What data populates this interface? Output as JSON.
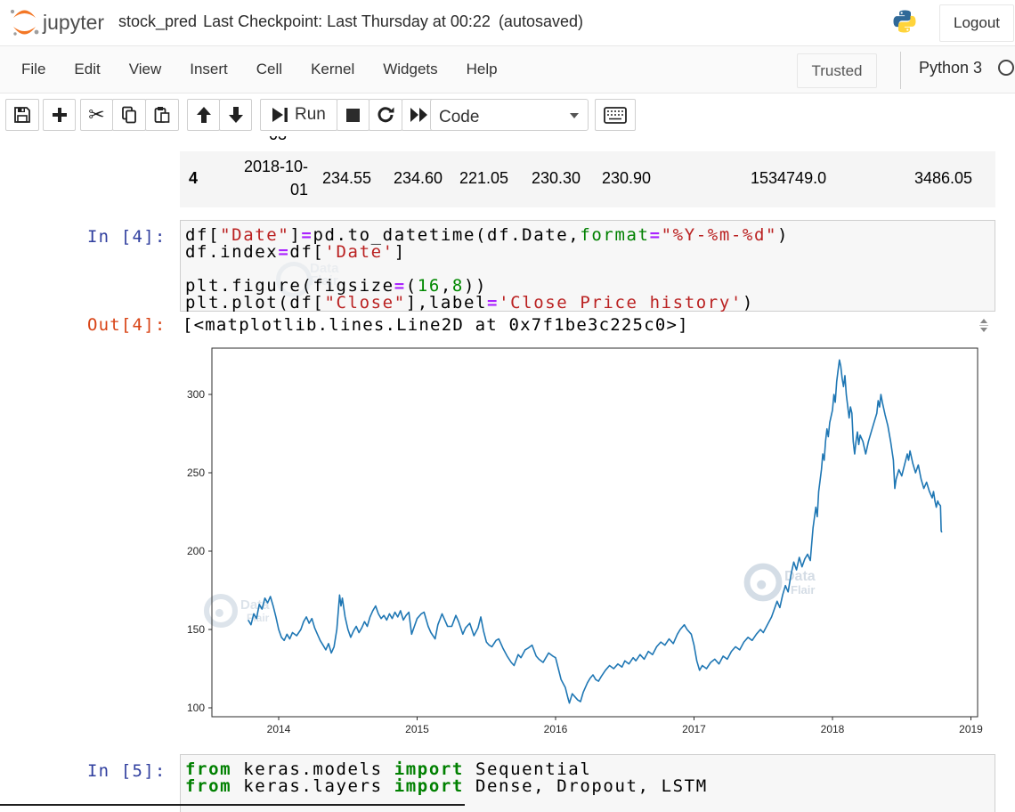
{
  "header": {
    "logo_text": "jupyter",
    "title": "stock_pred",
    "checkpoint_status": "Last Checkpoint: Last Thursday at 00:22",
    "autosave_status": "(autosaved)",
    "logout_label": "Logout"
  },
  "menubar": {
    "items": [
      "File",
      "Edit",
      "View",
      "Insert",
      "Cell",
      "Kernel",
      "Widgets",
      "Help"
    ],
    "trusted_badge": "Trusted",
    "kernel_name": "Python 3"
  },
  "toolbar": {
    "run_label": "Run",
    "cell_type_selected": "Code"
  },
  "dataframe_row": {
    "clipped_text_above": "03",
    "index": "4",
    "date_lines": [
      "2018-10-",
      "01"
    ],
    "values": [
      "234.55",
      "234.60",
      "221.05",
      "230.30",
      "230.90",
      "1534749.0",
      "3486.05"
    ]
  },
  "cell_in4": {
    "prompt": "In [4]:",
    "code_lines": [
      [
        [
          "p",
          "df["
        ],
        [
          "s",
          "\"Date\""
        ],
        [
          "p",
          "]"
        ],
        [
          "o",
          "="
        ],
        [
          "p",
          "pd.to_datetime(df.Date,"
        ],
        [
          "b",
          "format"
        ],
        [
          "o",
          "="
        ],
        [
          "s",
          "\"%Y-%m-%d\""
        ],
        [
          "p",
          ")"
        ]
      ],
      [
        [
          "p",
          "df.index"
        ],
        [
          "o",
          "="
        ],
        [
          "p",
          "df["
        ],
        [
          "s",
          "'Date'"
        ],
        [
          "p",
          "]"
        ]
      ],
      [],
      [
        [
          "p",
          "plt.figure(figsize"
        ],
        [
          "o",
          "="
        ],
        [
          "p",
          "("
        ],
        [
          "n",
          "16"
        ],
        [
          "p",
          ","
        ],
        [
          "n",
          "8"
        ],
        [
          "p",
          "))"
        ]
      ],
      [
        [
          "p",
          "plt.plot(df["
        ],
        [
          "s",
          "\"Close\""
        ],
        [
          "p",
          "],label"
        ],
        [
          "o",
          "="
        ],
        [
          "s",
          "'Close Price history'"
        ],
        [
          "p",
          ")"
        ]
      ]
    ]
  },
  "out4": {
    "prompt": "Out[4]:",
    "text": "[<matplotlib.lines.Line2D at 0x7f1be3c225c0>]"
  },
  "cell_in5": {
    "prompt": "In [5]:",
    "code_lines": [
      [
        [
          "k",
          "from"
        ],
        [
          "p",
          " keras.models "
        ],
        [
          "k",
          "import"
        ],
        [
          "p",
          " Sequential"
        ]
      ],
      [
        [
          "k",
          "from"
        ],
        [
          "p",
          " keras.layers "
        ],
        [
          "k",
          "import"
        ],
        [
          "p",
          " Dense, Dropout, LSTM"
        ]
      ]
    ]
  },
  "watermark": {
    "line1": "Data",
    "line2": "Flair"
  },
  "chart_data": {
    "type": "line",
    "title": "",
    "xlabel": "",
    "ylabel": "",
    "x_ticks": [
      2014,
      2015,
      2016,
      2017,
      2018,
      2019
    ],
    "y_ticks": [
      100,
      150,
      200,
      250,
      300
    ],
    "xlim": [
      2013.52,
      2019.03
    ],
    "ylim": [
      94.3,
      329.6
    ],
    "grid": false,
    "legend": "none",
    "series": [
      {
        "name": "Close Price history",
        "color": "#1f77b4",
        "points": [
          [
            2013.78,
            156
          ],
          [
            2013.8,
            153
          ],
          [
            2013.82,
            160
          ],
          [
            2013.84,
            157
          ],
          [
            2013.86,
            166
          ],
          [
            2013.88,
            163
          ],
          [
            2013.9,
            170
          ],
          [
            2013.92,
            167
          ],
          [
            2013.94,
            171
          ],
          [
            2013.96,
            165
          ],
          [
            2013.98,
            158
          ],
          [
            2014.0,
            150
          ],
          [
            2014.02,
            145
          ],
          [
            2014.04,
            143
          ],
          [
            2014.06,
            147
          ],
          [
            2014.08,
            144
          ],
          [
            2014.1,
            148
          ],
          [
            2014.13,
            146
          ],
          [
            2014.16,
            150
          ],
          [
            2014.18,
            155
          ],
          [
            2014.2,
            158
          ],
          [
            2014.22,
            154
          ],
          [
            2014.24,
            157
          ],
          [
            2014.26,
            151
          ],
          [
            2014.28,
            147
          ],
          [
            2014.3,
            143
          ],
          [
            2014.32,
            140
          ],
          [
            2014.34,
            137
          ],
          [
            2014.36,
            141
          ],
          [
            2014.38,
            135
          ],
          [
            2014.4,
            139
          ],
          [
            2014.42,
            150
          ],
          [
            2014.44,
            172
          ],
          [
            2014.45,
            165
          ],
          [
            2014.46,
            170
          ],
          [
            2014.48,
            158
          ],
          [
            2014.5,
            150
          ],
          [
            2014.52,
            145
          ],
          [
            2014.54,
            149
          ],
          [
            2014.56,
            152
          ],
          [
            2014.58,
            148
          ],
          [
            2014.6,
            151
          ],
          [
            2014.62,
            155
          ],
          [
            2014.64,
            152
          ],
          [
            2014.66,
            158
          ],
          [
            2014.68,
            162
          ],
          [
            2014.7,
            165
          ],
          [
            2014.72,
            160
          ],
          [
            2014.74,
            157
          ],
          [
            2014.76,
            159
          ],
          [
            2014.78,
            156
          ],
          [
            2014.8,
            160
          ],
          [
            2014.82,
            157
          ],
          [
            2014.84,
            161
          ],
          [
            2014.86,
            158
          ],
          [
            2014.88,
            162
          ],
          [
            2014.9,
            156
          ],
          [
            2014.92,
            159
          ],
          [
            2014.94,
            161
          ],
          [
            2014.96,
            147
          ],
          [
            2014.98,
            152
          ],
          [
            2015.0,
            157
          ],
          [
            2015.03,
            160
          ],
          [
            2015.05,
            161
          ],
          [
            2015.08,
            152
          ],
          [
            2015.1,
            148
          ],
          [
            2015.13,
            144
          ],
          [
            2015.15,
            153
          ],
          [
            2015.18,
            160
          ],
          [
            2015.2,
            156
          ],
          [
            2015.22,
            152
          ],
          [
            2015.25,
            152
          ],
          [
            2015.28,
            159
          ],
          [
            2015.3,
            155
          ],
          [
            2015.33,
            147
          ],
          [
            2015.35,
            151
          ],
          [
            2015.38,
            154
          ],
          [
            2015.41,
            146
          ],
          [
            2015.44,
            151
          ],
          [
            2015.46,
            158
          ],
          [
            2015.48,
            149
          ],
          [
            2015.5,
            142
          ],
          [
            2015.52,
            140
          ],
          [
            2015.54,
            139
          ],
          [
            2015.57,
            143
          ],
          [
            2015.59,
            144
          ],
          [
            2015.62,
            138
          ],
          [
            2015.65,
            133
          ],
          [
            2015.68,
            129
          ],
          [
            2015.7,
            127
          ],
          [
            2015.73,
            134
          ],
          [
            2015.75,
            132
          ],
          [
            2015.78,
            137
          ],
          [
            2015.8,
            138
          ],
          [
            2015.83,
            140
          ],
          [
            2015.86,
            133
          ],
          [
            2015.88,
            131
          ],
          [
            2015.91,
            129
          ],
          [
            2015.93,
            132
          ],
          [
            2015.95,
            135
          ],
          [
            2015.98,
            133
          ],
          [
            2016.0,
            132
          ],
          [
            2016.02,
            125
          ],
          [
            2016.04,
            118
          ],
          [
            2016.07,
            113
          ],
          [
            2016.09,
            106
          ],
          [
            2016.1,
            103
          ],
          [
            2016.12,
            109
          ],
          [
            2016.14,
            107
          ],
          [
            2016.16,
            105
          ],
          [
            2016.18,
            104
          ],
          [
            2016.2,
            110
          ],
          [
            2016.23,
            116
          ],
          [
            2016.25,
            119
          ],
          [
            2016.27,
            121
          ],
          [
            2016.29,
            118
          ],
          [
            2016.31,
            117
          ],
          [
            2016.33,
            120
          ],
          [
            2016.36,
            124
          ],
          [
            2016.39,
            127
          ],
          [
            2016.42,
            125
          ],
          [
            2016.45,
            128
          ],
          [
            2016.48,
            126
          ],
          [
            2016.5,
            130
          ],
          [
            2016.53,
            128
          ],
          [
            2016.56,
            132
          ],
          [
            2016.58,
            130
          ],
          [
            2016.61,
            134
          ],
          [
            2016.64,
            131
          ],
          [
            2016.67,
            136
          ],
          [
            2016.7,
            134
          ],
          [
            2016.73,
            139
          ],
          [
            2016.76,
            142
          ],
          [
            2016.79,
            140
          ],
          [
            2016.82,
            144
          ],
          [
            2016.85,
            141
          ],
          [
            2016.88,
            147
          ],
          [
            2016.9,
            150
          ],
          [
            2016.93,
            153
          ],
          [
            2016.95,
            150
          ],
          [
            2016.98,
            147
          ],
          [
            2017.0,
            140
          ],
          [
            2017.02,
            130
          ],
          [
            2017.04,
            124
          ],
          [
            2017.06,
            127
          ],
          [
            2017.09,
            125
          ],
          [
            2017.12,
            129
          ],
          [
            2017.15,
            131
          ],
          [
            2017.18,
            128
          ],
          [
            2017.21,
            133
          ],
          [
            2017.24,
            131
          ],
          [
            2017.27,
            136
          ],
          [
            2017.3,
            139
          ],
          [
            2017.33,
            137
          ],
          [
            2017.36,
            142
          ],
          [
            2017.39,
            145
          ],
          [
            2017.42,
            143
          ],
          [
            2017.45,
            147
          ],
          [
            2017.48,
            150
          ],
          [
            2017.5,
            148
          ],
          [
            2017.53,
            153
          ],
          [
            2017.56,
            158
          ],
          [
            2017.58,
            163
          ],
          [
            2017.6,
            168
          ],
          [
            2017.62,
            164
          ],
          [
            2017.64,
            172
          ],
          [
            2017.66,
            178
          ],
          [
            2017.68,
            174
          ],
          [
            2017.7,
            185
          ],
          [
            2017.72,
            193
          ],
          [
            2017.74,
            188
          ],
          [
            2017.76,
            196
          ],
          [
            2017.78,
            190
          ],
          [
            2017.8,
            195
          ],
          [
            2017.82,
            198
          ],
          [
            2017.84,
            194
          ],
          [
            2017.85,
            205
          ],
          [
            2017.86,
            215
          ],
          [
            2017.88,
            228
          ],
          [
            2017.89,
            222
          ],
          [
            2017.9,
            238
          ],
          [
            2017.92,
            252
          ],
          [
            2017.93,
            262
          ],
          [
            2017.94,
            258
          ],
          [
            2017.95,
            270
          ],
          [
            2017.96,
            278
          ],
          [
            2017.97,
            273
          ],
          [
            2017.98,
            282
          ],
          [
            2018.0,
            290
          ],
          [
            2018.01,
            300
          ],
          [
            2018.02,
            295
          ],
          [
            2018.03,
            308
          ],
          [
            2018.04,
            315
          ],
          [
            2018.05,
            322
          ],
          [
            2018.06,
            318
          ],
          [
            2018.07,
            310
          ],
          [
            2018.08,
            305
          ],
          [
            2018.09,
            312
          ],
          [
            2018.1,
            300
          ],
          [
            2018.12,
            285
          ],
          [
            2018.13,
            292
          ],
          [
            2018.14,
            288
          ],
          [
            2018.15,
            270
          ],
          [
            2018.16,
            262
          ],
          [
            2018.17,
            270
          ],
          [
            2018.18,
            276
          ],
          [
            2018.19,
            268
          ],
          [
            2018.2,
            274
          ],
          [
            2018.22,
            270
          ],
          [
            2018.24,
            262
          ],
          [
            2018.26,
            270
          ],
          [
            2018.28,
            276
          ],
          [
            2018.3,
            282
          ],
          [
            2018.32,
            288
          ],
          [
            2018.33,
            296
          ],
          [
            2018.34,
            292
          ],
          [
            2018.35,
            300
          ],
          [
            2018.36,
            295
          ],
          [
            2018.38,
            287
          ],
          [
            2018.4,
            280
          ],
          [
            2018.42,
            270
          ],
          [
            2018.44,
            258
          ],
          [
            2018.45,
            240
          ],
          [
            2018.46,
            246
          ],
          [
            2018.48,
            252
          ],
          [
            2018.5,
            248
          ],
          [
            2018.52,
            255
          ],
          [
            2018.54,
            262
          ],
          [
            2018.55,
            258
          ],
          [
            2018.56,
            264
          ],
          [
            2018.58,
            256
          ],
          [
            2018.6,
            250
          ],
          [
            2018.62,
            255
          ],
          [
            2018.64,
            246
          ],
          [
            2018.66,
            240
          ],
          [
            2018.68,
            244
          ],
          [
            2018.7,
            238
          ],
          [
            2018.72,
            234
          ],
          [
            2018.73,
            238
          ],
          [
            2018.74,
            232
          ],
          [
            2018.75,
            228
          ],
          [
            2018.76,
            232
          ],
          [
            2018.77,
            230
          ],
          [
            2018.78,
            229
          ],
          [
            2018.785,
            213
          ],
          [
            2018.79,
            212
          ]
        ]
      }
    ]
  }
}
